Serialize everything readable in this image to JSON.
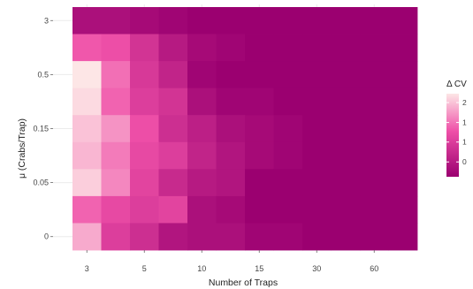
{
  "chart_data": {
    "type": "heatmap",
    "title": "",
    "xlabel": "Number of Traps",
    "ylabel": "μ (Crabs/Trap)",
    "x_ticks": [
      {
        "col": 0.5,
        "label": "3"
      },
      {
        "col": 2.5,
        "label": "5"
      },
      {
        "col": 4.5,
        "label": "10"
      },
      {
        "col": 6.5,
        "label": "15"
      },
      {
        "col": 8.5,
        "label": "30"
      },
      {
        "col": 10.5,
        "label": "60"
      }
    ],
    "y_ticks": [
      {
        "row": 0,
        "label": "3"
      },
      {
        "row": 2,
        "label": "0.5"
      },
      {
        "row": 4,
        "label": "0.15"
      },
      {
        "row": 6,
        "label": "0.05"
      },
      {
        "row": 8,
        "label": "0"
      }
    ],
    "n_cols": 12,
    "n_rows": 9,
    "values": [
      [
        -0.2,
        -0.2,
        -0.3,
        -0.4,
        -0.5,
        -0.5,
        -0.5,
        -0.5,
        -0.5,
        -0.5,
        -0.5,
        -0.5
      ],
      [
        1.1,
        1.0,
        0.5,
        0.0,
        -0.3,
        -0.4,
        -0.5,
        -0.5,
        -0.5,
        -0.5,
        -0.5,
        -0.5
      ],
      [
        2.3,
        1.3,
        0.6,
        0.2,
        -0.4,
        -0.5,
        -0.5,
        -0.5,
        -0.5,
        -0.5,
        -0.5,
        -0.5
      ],
      [
        2.2,
        1.2,
        0.7,
        0.5,
        -0.2,
        -0.4,
        -0.4,
        -0.5,
        -0.5,
        -0.5,
        -0.5,
        -0.5
      ],
      [
        2.0,
        1.6,
        1.0,
        0.4,
        0.1,
        -0.2,
        -0.3,
        -0.4,
        -0.5,
        -0.5,
        -0.5,
        -0.5
      ],
      [
        1.9,
        1.4,
        0.9,
        0.7,
        0.2,
        -0.1,
        -0.3,
        -0.4,
        -0.5,
        -0.5,
        -0.5,
        -0.5
      ],
      [
        2.1,
        1.5,
        0.8,
        0.3,
        0.0,
        -0.1,
        -0.5,
        -0.5,
        -0.5,
        -0.5,
        -0.5,
        -0.5
      ],
      [
        1.2,
        0.9,
        0.7,
        0.8,
        -0.2,
        -0.3,
        -0.5,
        -0.5,
        -0.5,
        -0.5,
        -0.5,
        -0.5
      ],
      [
        1.8,
        0.7,
        0.4,
        -0.1,
        -0.2,
        -0.2,
        -0.4,
        -0.4,
        -0.5,
        -0.5,
        -0.5,
        -0.5
      ]
    ],
    "color_scale": {
      "min": -0.5,
      "max": 2.3,
      "low_color": "#9b0070",
      "mid_color": "#ef50a8",
      "high_color": "#fde6e6"
    },
    "legend": {
      "title": "Δ CV",
      "position": "right",
      "ticks": [
        {
          "value": 2,
          "label": "2"
        },
        {
          "value": 1.33,
          "label": "1"
        },
        {
          "value": 0.67,
          "label": "1"
        },
        {
          "value": 0,
          "label": "0"
        }
      ]
    },
    "grid": true,
    "panel_background": "#ffffff",
    "grid_color": "#ebebeb"
  }
}
